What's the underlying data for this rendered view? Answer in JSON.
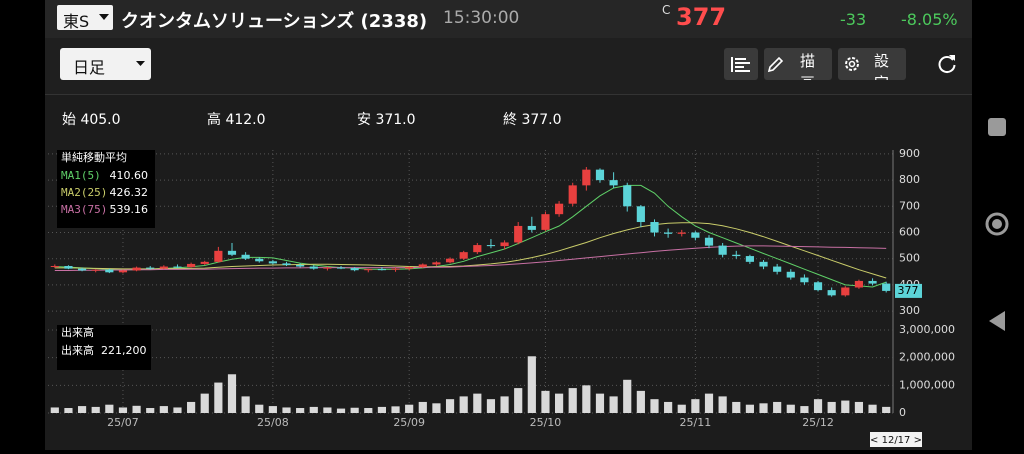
{
  "header": {
    "exchange": "東S",
    "name": "クオンタムソリューションズ (2338)",
    "time": "15:30:00",
    "price_flag": "C",
    "price": 377,
    "change": -33,
    "change_pct": "-8.05%"
  },
  "toolbar": {
    "period": "日足",
    "draw": "描画",
    "settings": "設定"
  },
  "ohlc": {
    "open_label": "始",
    "open": "405.0",
    "high_label": "高",
    "high": "412.0",
    "low_label": "安",
    "low": "371.0",
    "close_label": "終",
    "close": "377.0"
  },
  "chart_data": {
    "type": "candlestick",
    "legend_title": "単純移動平均",
    "categories": [
      null,
      null,
      null,
      null,
      null,
      "25/07",
      null,
      null,
      null,
      null,
      null,
      null,
      null,
      null,
      null,
      null,
      "25/08",
      null,
      null,
      null,
      null,
      null,
      null,
      null,
      null,
      null,
      "25/09",
      null,
      null,
      null,
      null,
      null,
      null,
      null,
      null,
      null,
      "25/10",
      null,
      null,
      null,
      null,
      null,
      null,
      null,
      null,
      null,
      null,
      "25/11",
      null,
      null,
      null,
      null,
      null,
      null,
      null,
      null,
      "25/12",
      null,
      null,
      null,
      null,
      null
    ],
    "open": [
      470,
      472,
      462,
      455,
      458,
      448,
      455,
      466,
      462,
      470,
      468,
      480,
      488,
      530,
      515,
      500,
      490,
      482,
      476,
      470,
      462,
      466,
      464,
      456,
      460,
      458,
      462,
      468,
      478,
      486,
      500,
      525,
      552,
      548,
      562,
      625,
      610,
      670,
      710,
      780,
      840,
      800,
      780,
      700,
      640,
      600,
      595,
      600,
      580,
      550,
      515,
      510,
      488,
      470,
      450,
      428,
      410,
      380,
      360,
      390,
      415,
      405
    ],
    "high": [
      478,
      475,
      466,
      460,
      462,
      458,
      470,
      472,
      475,
      478,
      485,
      492,
      545,
      560,
      525,
      505,
      495,
      488,
      482,
      476,
      470,
      472,
      468,
      462,
      468,
      466,
      470,
      482,
      490,
      505,
      530,
      560,
      575,
      570,
      640,
      660,
      680,
      720,
      790,
      850,
      845,
      830,
      790,
      705,
      650,
      615,
      610,
      605,
      590,
      560,
      530,
      515,
      495,
      480,
      460,
      440,
      415,
      390,
      395,
      420,
      425,
      412
    ],
    "low": [
      465,
      460,
      452,
      448,
      445,
      444,
      452,
      458,
      460,
      464,
      466,
      476,
      485,
      510,
      495,
      485,
      478,
      472,
      466,
      458,
      455,
      460,
      452,
      448,
      455,
      450,
      456,
      464,
      472,
      482,
      495,
      518,
      540,
      535,
      555,
      600,
      605,
      660,
      700,
      760,
      790,
      770,
      680,
      620,
      585,
      580,
      585,
      570,
      540,
      505,
      500,
      480,
      460,
      440,
      420,
      400,
      375,
      355,
      355,
      385,
      398,
      371
    ],
    "close": [
      472,
      462,
      455,
      458,
      448,
      455,
      466,
      462,
      470,
      468,
      480,
      488,
      530,
      515,
      500,
      490,
      482,
      476,
      470,
      462,
      466,
      464,
      456,
      460,
      458,
      462,
      468,
      478,
      486,
      500,
      525,
      552,
      548,
      562,
      625,
      610,
      670,
      710,
      780,
      840,
      800,
      780,
      700,
      640,
      600,
      595,
      600,
      580,
      550,
      515,
      510,
      488,
      470,
      450,
      428,
      410,
      380,
      360,
      390,
      415,
      405,
      377
    ],
    "up_color": "#e8403f",
    "down_color": "#5cd4d8",
    "series": [
      {
        "name": "MA1(5)",
        "color": "#5fd068",
        "last_label": "410.60",
        "values": [
          470,
          468,
          465,
          462,
          459,
          458,
          458,
          460,
          463,
          465,
          469,
          474,
          487,
          498,
          505,
          505,
          503,
          493,
          483,
          476,
          470,
          466,
          464,
          460,
          460,
          460,
          461,
          465,
          470,
          478,
          490,
          508,
          522,
          537,
          558,
          580,
          603,
          625,
          660,
          700,
          740,
          770,
          780,
          780,
          750,
          700,
          660,
          625,
          600,
          580,
          560,
          540,
          520,
          500,
          480,
          460,
          440,
          420,
          400,
          396,
          392,
          410.6
        ]
      },
      {
        "name": "MA2(25)",
        "color": "#c9cc6a",
        "last_label": "426.32",
        "values": [
          465,
          465,
          464,
          463,
          462,
          461,
          461,
          461,
          462,
          462,
          463,
          464,
          467,
          470,
          472,
          474,
          476,
          477,
          478,
          479,
          479,
          478,
          477,
          476,
          474,
          472,
          470,
          469,
          469,
          470,
          472,
          476,
          480,
          486,
          494,
          504,
          516,
          530,
          546,
          562,
          580,
          596,
          610,
          622,
          630,
          635,
          637,
          637,
          634,
          626,
          614,
          600,
          584,
          566,
          548,
          530,
          512,
          494,
          476,
          458,
          442,
          426.32
        ]
      },
      {
        "name": "MA3(75)",
        "color": "#c870a4",
        "last_label": "539.16",
        "values": [
          455,
          455,
          456,
          456,
          457,
          457,
          458,
          458,
          459,
          459,
          460,
          460,
          461,
          462,
          463,
          464,
          464,
          465,
          465,
          466,
          466,
          466,
          466,
          466,
          466,
          466,
          466,
          467,
          467,
          468,
          470,
          472,
          474,
          477,
          480,
          484,
          488,
          493,
          498,
          503,
          508,
          513,
          518,
          523,
          528,
          532,
          536,
          540,
          543,
          546,
          548,
          549,
          549,
          548,
          547,
          546,
          545,
          544,
          543,
          542,
          541,
          539.16
        ]
      }
    ],
    "ylim": [
      285,
      915
    ],
    "yticks": [
      300,
      400,
      500,
      600,
      700,
      800,
      900
    ],
    "grid": true,
    "volume": {
      "title": "出来高",
      "legend_name": "出来高",
      "legend_value": "221,200",
      "color": "#d9d9d9",
      "values": [
        200000,
        180000,
        250000,
        220000,
        300000,
        200000,
        260000,
        180000,
        250000,
        200000,
        400000,
        700000,
        1100000,
        1400000,
        600000,
        300000,
        250000,
        200000,
        180000,
        220000,
        200000,
        160000,
        190000,
        180000,
        220000,
        240000,
        300000,
        400000,
        350000,
        500000,
        600000,
        700000,
        500000,
        600000,
        900000,
        2050000,
        800000,
        700000,
        900000,
        1000000,
        700000,
        600000,
        1200000,
        800000,
        500000,
        400000,
        300000,
        500000,
        700000,
        600000,
        400000,
        300000,
        350000,
        400000,
        300000,
        250000,
        500000,
        400000,
        450000,
        400000,
        300000,
        221200
      ],
      "ylim": [
        0,
        3000000
      ],
      "yticks": [
        0,
        {
          "value": 1000000,
          "label": "1,000,000"
        },
        {
          "value": 2000000,
          "label": "2,000,000"
        },
        {
          "value": 3000000,
          "label": "3,000,000"
        }
      ]
    },
    "date_tag": "< 12/17 >"
  }
}
